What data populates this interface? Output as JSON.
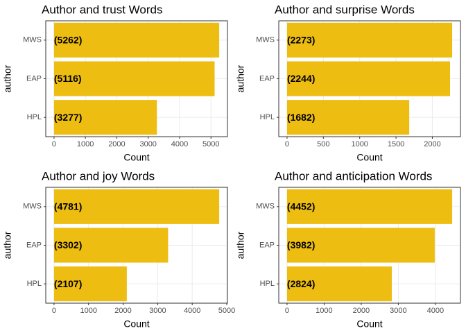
{
  "chart_data": [
    {
      "type": "bar",
      "title": "Author and trust Words",
      "xlabel": "Count",
      "ylabel": "author",
      "categories": [
        "MWS",
        "EAP",
        "HPL"
      ],
      "values": [
        5262,
        5116,
        3277
      ],
      "value_labels": [
        "(5262)",
        "(5116)",
        "(3277)"
      ],
      "color": "#eebd12",
      "xlim": [
        -263,
        5525
      ],
      "xticks": [
        0,
        1000,
        2000,
        3000,
        4000,
        5000
      ],
      "grid": true
    },
    {
      "type": "bar",
      "title": "Author and surprise Words",
      "xlabel": "Count",
      "ylabel": "author",
      "categories": [
        "MWS",
        "EAP",
        "HPL"
      ],
      "values": [
        2273,
        2244,
        1682
      ],
      "value_labels": [
        "(2273)",
        "(2244)",
        "(1682)"
      ],
      "color": "#eebd12",
      "xlim": [
        -114,
        2387
      ],
      "xticks": [
        0,
        500,
        1000,
        1500,
        2000
      ],
      "grid": true
    },
    {
      "type": "bar",
      "title": "Author and joy Words",
      "xlabel": "Count",
      "ylabel": "author",
      "categories": [
        "MWS",
        "EAP",
        "HPL"
      ],
      "values": [
        4781,
        3302,
        2107
      ],
      "value_labels": [
        "(4781)",
        "(3302)",
        "(2107)"
      ],
      "color": "#eebd12",
      "xlim": [
        -239,
        5020
      ],
      "xticks": [
        0,
        1000,
        2000,
        3000,
        4000,
        5000
      ],
      "grid": true
    },
    {
      "type": "bar",
      "title": "Author and anticipation Words",
      "xlabel": "Count",
      "ylabel": "author",
      "categories": [
        "MWS",
        "EAP",
        "HPL"
      ],
      "values": [
        4452,
        3982,
        2824
      ],
      "value_labels": [
        "(4452)",
        "(3982)",
        "(2824)"
      ],
      "color": "#eebd12",
      "xlim": [
        -223,
        4675
      ],
      "xticks": [
        0,
        1000,
        2000,
        3000,
        4000
      ],
      "grid": true
    }
  ]
}
